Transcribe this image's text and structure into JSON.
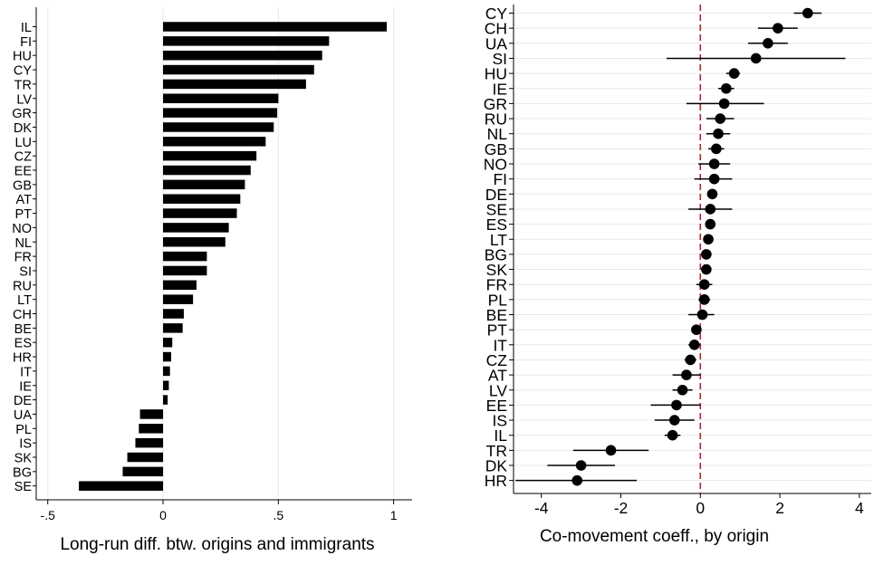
{
  "chart_data": [
    {
      "type": "bar",
      "orientation": "horizontal",
      "xlabel": "Long-run diff. btw. origins and immigrants",
      "xlim": [
        -0.55,
        1.08
      ],
      "xticks": [
        -0.5,
        0,
        0.5,
        1
      ],
      "xtick_labels": [
        "-.5",
        "0",
        ".5",
        "1"
      ],
      "grid": "vertical",
      "color": "#000000",
      "categories": [
        "IL",
        "FI",
        "HU",
        "CY",
        "TR",
        "LV",
        "GR",
        "DK",
        "LU",
        "CZ",
        "EE",
        "GB",
        "AT",
        "PT",
        "NO",
        "NL",
        "FR",
        "SI",
        "RU",
        "LT",
        "CH",
        "BE",
        "ES",
        "HR",
        "IT",
        "IE",
        "DE",
        "UA",
        "PL",
        "IS",
        "SK",
        "BG",
        "SE"
      ],
      "values": [
        0.97,
        0.72,
        0.69,
        0.655,
        0.62,
        0.5,
        0.495,
        0.48,
        0.445,
        0.405,
        0.38,
        0.355,
        0.335,
        0.32,
        0.285,
        0.27,
        0.19,
        0.19,
        0.145,
        0.13,
        0.09,
        0.085,
        0.04,
        0.035,
        0.03,
        0.025,
        0.02,
        -0.1,
        -0.105,
        -0.12,
        -0.155,
        -0.175,
        -0.365
      ]
    },
    {
      "type": "scatter",
      "subtype": "coefficient_plot",
      "xlabel": "Co-movement coeff., by origin",
      "xlim": [
        -4.7,
        4.3
      ],
      "xticks": [
        -4,
        -2,
        0,
        2,
        4
      ],
      "xtick_labels": [
        "-4",
        "-2",
        "0",
        "2",
        "4"
      ],
      "grid": "horizontal",
      "reference_line": {
        "x": 0,
        "color": "#b22234",
        "style": "dashed"
      },
      "categories": [
        "CY",
        "CH",
        "UA",
        "SI",
        "HU",
        "IE",
        "GR",
        "RU",
        "NL",
        "GB",
        "NO",
        "FI",
        "DE",
        "SE",
        "ES",
        "LT",
        "BG",
        "SK",
        "FR",
        "PL",
        "BE",
        "PT",
        "IT",
        "CZ",
        "AT",
        "LV",
        "EE",
        "IS",
        "IL",
        "TR",
        "DK",
        "HR"
      ],
      "coef": [
        2.7,
        1.95,
        1.7,
        1.4,
        0.85,
        0.65,
        0.6,
        0.5,
        0.45,
        0.4,
        0.35,
        0.35,
        0.3,
        0.25,
        0.25,
        0.2,
        0.15,
        0.15,
        0.1,
        0.1,
        0.05,
        -0.1,
        -0.15,
        -0.25,
        -0.35,
        -0.45,
        -0.6,
        -0.65,
        -0.7,
        -2.25,
        -3.0,
        -3.1
      ],
      "ci_low": [
        2.35,
        1.45,
        1.2,
        -0.85,
        0.65,
        0.45,
        -0.35,
        0.15,
        0.15,
        0.2,
        -0.05,
        -0.15,
        0.2,
        -0.3,
        0.15,
        0.15,
        0.05,
        0.05,
        -0.1,
        -0.05,
        -0.3,
        -0.2,
        -0.3,
        -0.4,
        -0.7,
        -0.7,
        -1.25,
        -1.15,
        -0.9,
        -3.2,
        -3.85,
        -4.65
      ],
      "ci_high": [
        3.05,
        2.45,
        2.2,
        3.65,
        1.0,
        0.85,
        1.6,
        0.85,
        0.75,
        0.6,
        0.75,
        0.8,
        0.4,
        0.8,
        0.35,
        0.25,
        0.25,
        0.25,
        0.3,
        0.25,
        0.35,
        0.0,
        0.0,
        -0.1,
        0.0,
        -0.2,
        0.0,
        -0.15,
        -0.5,
        -1.3,
        -2.15,
        -1.6
      ]
    }
  ]
}
